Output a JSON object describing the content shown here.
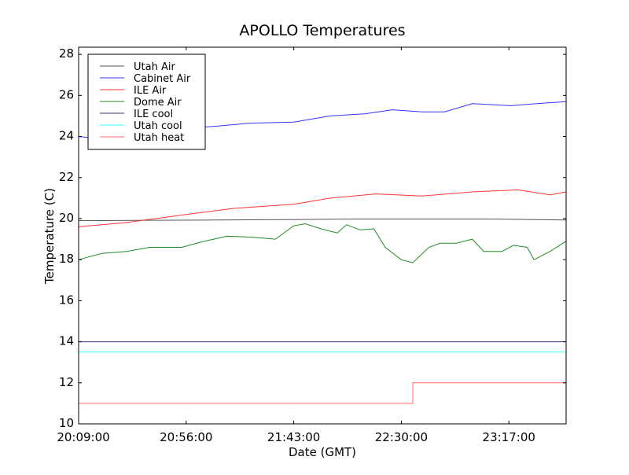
{
  "chart_data": {
    "type": "line",
    "title": "APOLLO Temperatures",
    "xlabel": "Date (GMT)",
    "ylabel": "Temperature (C)",
    "x_units": "minutes since 20:09:00",
    "xlim": [
      0,
      213
    ],
    "ylim": [
      10,
      28.35
    ],
    "x_ticks": [
      {
        "value": 0,
        "label": "20:09:00"
      },
      {
        "value": 47,
        "label": "20:56:00"
      },
      {
        "value": 94,
        "label": "21:43:00"
      },
      {
        "value": 141,
        "label": "22:30:00"
      },
      {
        "value": 188,
        "label": "23:17:00"
      }
    ],
    "y_ticks": [
      10,
      12,
      14,
      16,
      18,
      20,
      22,
      24,
      26,
      28
    ],
    "grid": false,
    "legend_position": "top-left",
    "series": [
      {
        "name": "Utah Air",
        "color": "#555555",
        "x": [
          0,
          30,
          60,
          90,
          120,
          150,
          180,
          200,
          213
        ],
        "y": [
          19.9,
          19.92,
          19.93,
          19.95,
          19.98,
          19.98,
          19.98,
          19.95,
          19.93
        ]
      },
      {
        "name": "Cabinet Air",
        "color": "#3333ff",
        "x": [
          0,
          10,
          47,
          60,
          75,
          94,
          110,
          125,
          137,
          150,
          160,
          172,
          189,
          200,
          213
        ],
        "y": [
          24.0,
          23.9,
          24.4,
          24.5,
          24.65,
          24.7,
          25.0,
          25.1,
          25.3,
          25.2,
          25.2,
          25.6,
          25.5,
          25.6,
          25.7
        ]
      },
      {
        "name": "ILE Air",
        "color": "#ff3333",
        "x": [
          0,
          20,
          47,
          68,
          94,
          110,
          130,
          150,
          172,
          192,
          206,
          213
        ],
        "y": [
          19.6,
          19.8,
          20.2,
          20.5,
          20.7,
          21.0,
          21.2,
          21.1,
          21.3,
          21.4,
          21.15,
          21.3
        ]
      },
      {
        "name": "Dome Air",
        "color": "#228b22",
        "x": [
          0,
          10,
          21,
          31,
          45,
          55,
          65,
          75,
          86,
          94,
          99,
          106,
          113,
          117,
          123,
          129,
          134,
          141,
          146,
          153,
          158,
          165,
          172,
          177,
          185,
          190,
          196,
          199,
          206,
          213
        ],
        "y": [
          18.0,
          18.3,
          18.4,
          18.6,
          18.6,
          18.9,
          19.15,
          19.1,
          19.0,
          19.65,
          19.75,
          19.5,
          19.3,
          19.7,
          19.45,
          19.5,
          18.6,
          18.0,
          17.85,
          18.6,
          18.8,
          18.8,
          19.0,
          18.4,
          18.4,
          18.7,
          18.6,
          18.0,
          18.4,
          18.9
        ]
      },
      {
        "name": "ILE cool",
        "color": "#333377",
        "x": [
          0,
          213
        ],
        "y": [
          14.0,
          14.0
        ]
      },
      {
        "name": "Utah cool",
        "color": "#33ffff",
        "x": [
          0,
          213
        ],
        "y": [
          13.5,
          13.5
        ]
      },
      {
        "name": "Utah heat",
        "color": "#ff6666",
        "x": [
          0,
          146,
          146,
          213
        ],
        "y": [
          11.0,
          11.0,
          12.0,
          12.0
        ]
      }
    ]
  }
}
